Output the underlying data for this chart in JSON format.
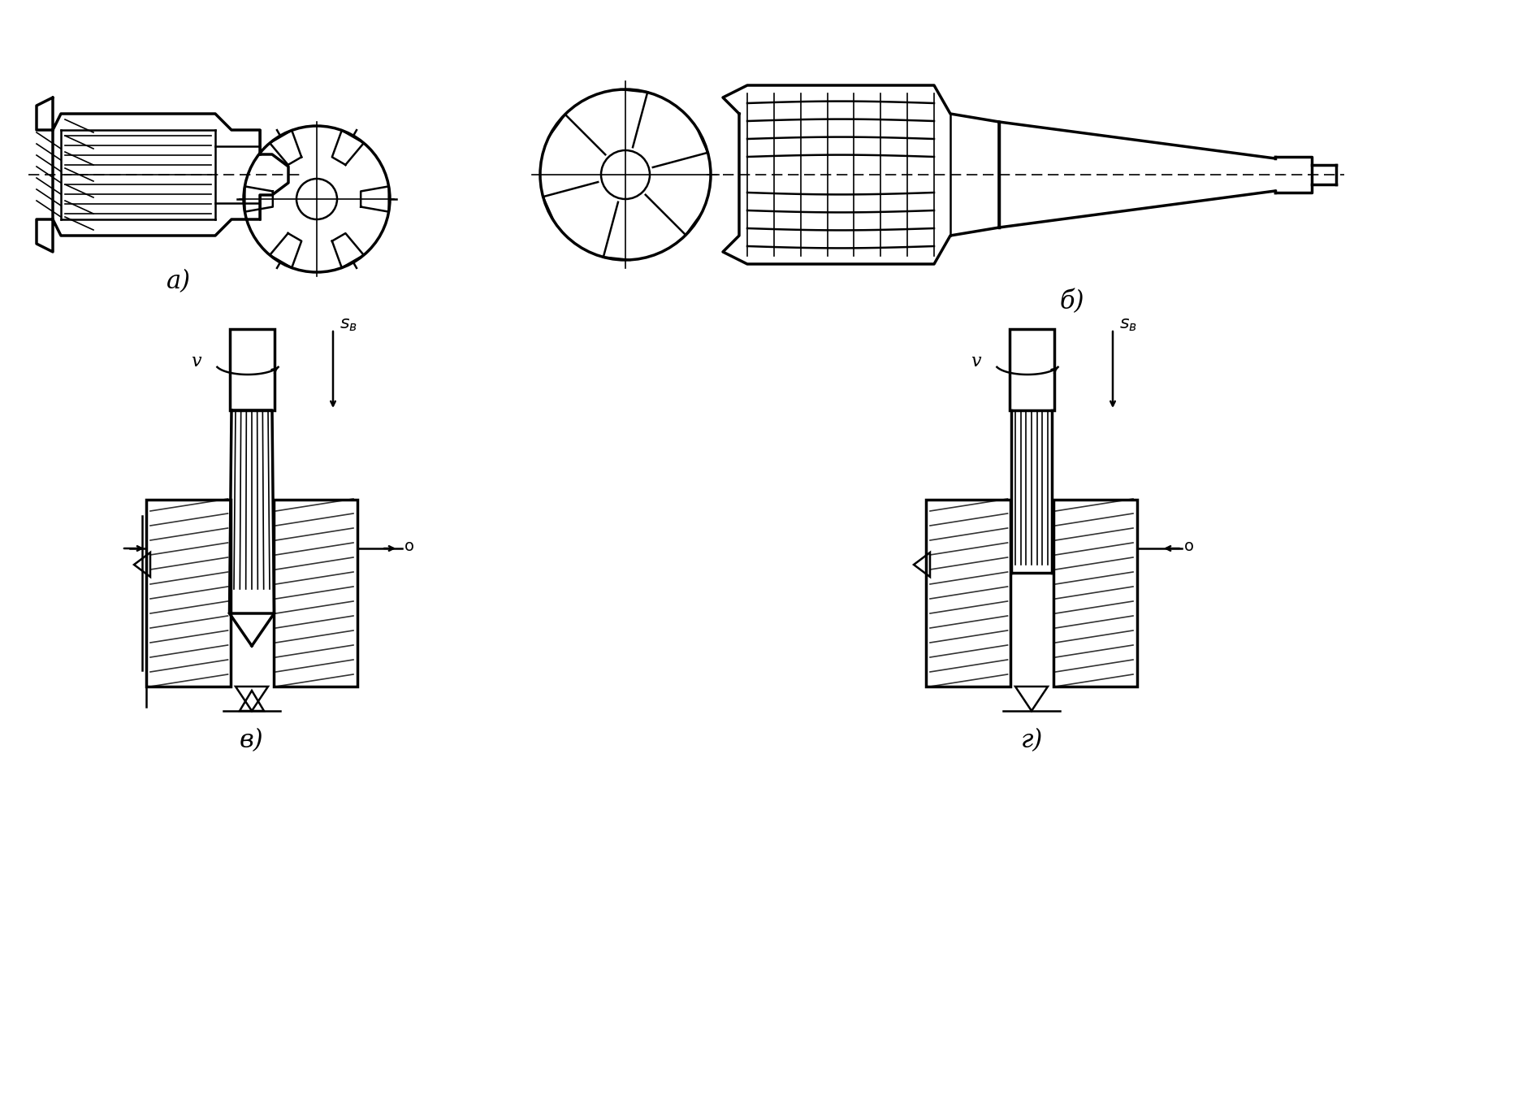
{
  "background_color": "#ffffff",
  "line_color": "#000000",
  "label_a": "а)",
  "label_b": "б)",
  "label_v": "в)",
  "label_g": "г)",
  "label_sv": "sв",
  "label_v_arrow": "v",
  "figsize": [
    18.8,
    13.65
  ],
  "dpi": 100
}
